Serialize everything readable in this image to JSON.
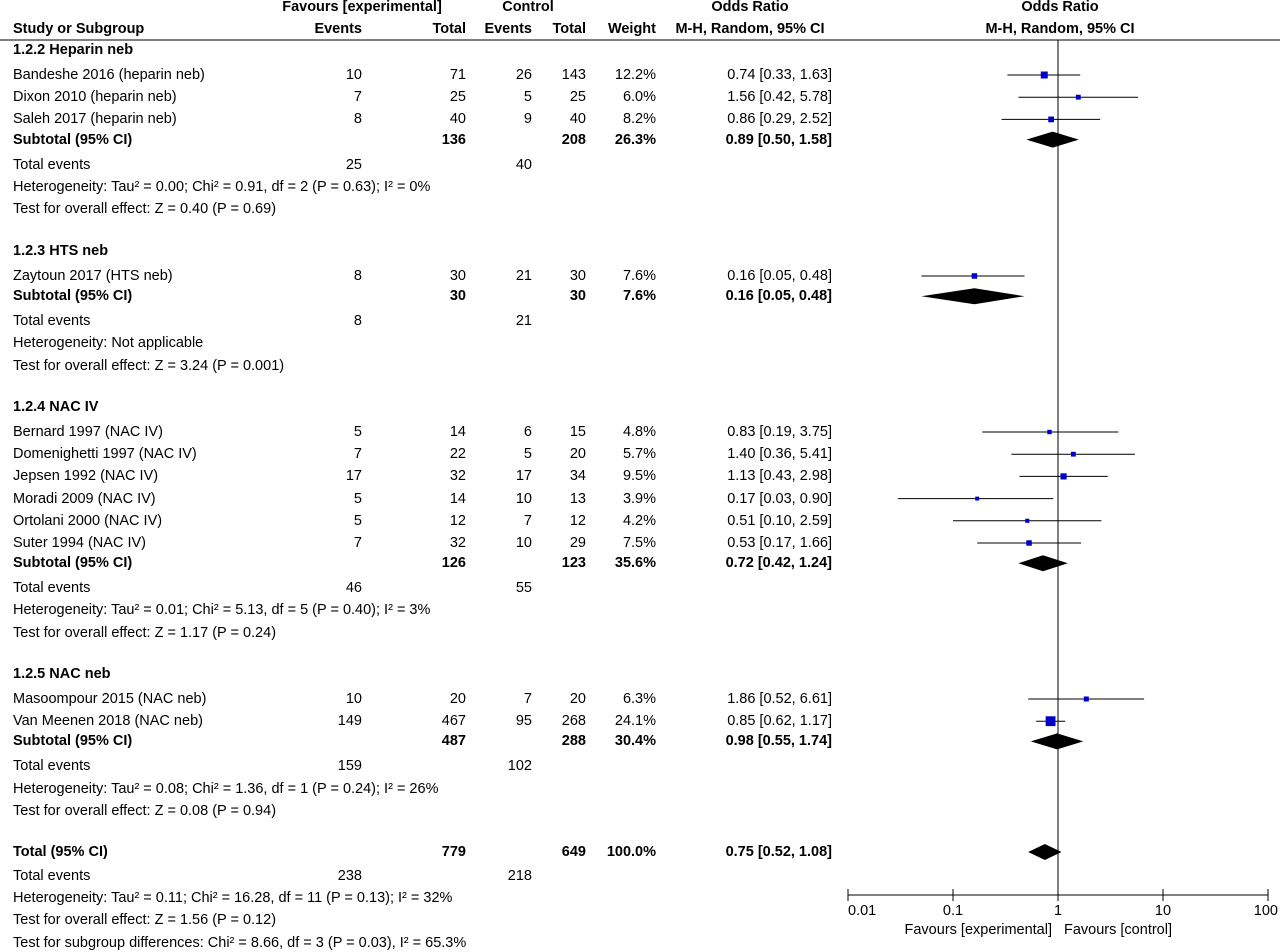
{
  "header": {
    "study_col": "Study or Subgroup",
    "exp_group": "Favours [experimental]",
    "ctrl_group": "Control",
    "events": "Events",
    "total": "Total",
    "weight": "Weight",
    "or_col": "Odds Ratio",
    "or_method": "M-H, Random, 95% CI",
    "or_col2": "Odds Ratio",
    "or_method2": "M-H, Random, 95% CI"
  },
  "chart_data": {
    "type": "forest",
    "measure": "Odds Ratio",
    "method": "M-H, Random, 95% CI",
    "scale": "log",
    "xlim": [
      0.01,
      100
    ],
    "ticks": [
      "0.01",
      "0.1",
      "1",
      "10",
      "100"
    ],
    "tick_values": [
      0.01,
      0.1,
      1,
      10,
      100
    ],
    "reference_line": 1,
    "x_left_label": "Favours [experimental]",
    "x_right_label": "Favours [control]",
    "subgroups": [
      {
        "title": "1.2.2 Heparin neb",
        "studies": [
          {
            "name": "Bandeshe 2016 (heparin neb)",
            "e_events": "10",
            "e_total": "71",
            "c_events": "26",
            "c_total": "143",
            "weight": "12.2%",
            "or_text": "0.74 [0.33, 1.63]",
            "or": 0.74,
            "lo": 0.33,
            "hi": 1.63
          },
          {
            "name": "Dixon 2010 (heparin neb)",
            "e_events": "7",
            "e_total": "25",
            "c_events": "5",
            "c_total": "25",
            "weight": "6.0%",
            "or_text": "1.56 [0.42, 5.78]",
            "or": 1.56,
            "lo": 0.42,
            "hi": 5.78
          },
          {
            "name": "Saleh 2017 (heparin neb)",
            "e_events": "8",
            "e_total": "40",
            "c_events": "9",
            "c_total": "40",
            "weight": "8.2%",
            "or_text": "0.86 [0.29, 2.52]",
            "or": 0.86,
            "lo": 0.29,
            "hi": 2.52
          }
        ],
        "subtotal": {
          "label": "Subtotal (95% CI)",
          "e_total": "136",
          "c_total": "208",
          "weight": "26.3%",
          "or_text": "0.89 [0.50, 1.58]",
          "or": 0.89,
          "lo": 0.5,
          "hi": 1.58
        },
        "total_events": {
          "label": "Total events",
          "e": "25",
          "c": "40"
        },
        "heterogeneity": "Heterogeneity: Tau² = 0.00; Chi² = 0.91, df = 2 (P = 0.63); I² = 0%",
        "overall": "Test for overall effect: Z = 0.40 (P = 0.69)"
      },
      {
        "title": "1.2.3 HTS neb",
        "studies": [
          {
            "name": "Zaytoun 2017 (HTS neb)",
            "e_events": "8",
            "e_total": "30",
            "c_events": "21",
            "c_total": "30",
            "weight": "7.6%",
            "or_text": "0.16 [0.05, 0.48]",
            "or": 0.16,
            "lo": 0.05,
            "hi": 0.48
          }
        ],
        "subtotal": {
          "label": "Subtotal (95% CI)",
          "e_total": "30",
          "c_total": "30",
          "weight": "7.6%",
          "or_text": "0.16 [0.05, 0.48]",
          "or": 0.16,
          "lo": 0.05,
          "hi": 0.48
        },
        "total_events": {
          "label": "Total events",
          "e": "8",
          "c": "21"
        },
        "heterogeneity": "Heterogeneity: Not applicable",
        "overall": "Test for overall effect: Z = 3.24 (P = 0.001)"
      },
      {
        "title": "1.2.4 NAC IV",
        "studies": [
          {
            "name": "Bernard 1997 (NAC IV)",
            "e_events": "5",
            "e_total": "14",
            "c_events": "6",
            "c_total": "15",
            "weight": "4.8%",
            "or_text": "0.83 [0.19, 3.75]",
            "or": 0.83,
            "lo": 0.19,
            "hi": 3.75
          },
          {
            "name": "Domenighetti 1997 (NAC IV)",
            "e_events": "7",
            "e_total": "22",
            "c_events": "5",
            "c_total": "20",
            "weight": "5.7%",
            "or_text": "1.40 [0.36, 5.41]",
            "or": 1.4,
            "lo": 0.36,
            "hi": 5.41
          },
          {
            "name": "Jepsen 1992 (NAC IV)",
            "e_events": "17",
            "e_total": "32",
            "c_events": "17",
            "c_total": "34",
            "weight": "9.5%",
            "or_text": "1.13 [0.43, 2.98]",
            "or": 1.13,
            "lo": 0.43,
            "hi": 2.98
          },
          {
            "name": "Moradi 2009 (NAC IV)",
            "e_events": "5",
            "e_total": "14",
            "c_events": "10",
            "c_total": "13",
            "weight": "3.9%",
            "or_text": "0.17 [0.03, 0.90]",
            "or": 0.17,
            "lo": 0.03,
            "hi": 0.9
          },
          {
            "name": "Ortolani 2000 (NAC IV)",
            "e_events": "5",
            "e_total": "12",
            "c_events": "7",
            "c_total": "12",
            "weight": "4.2%",
            "or_text": "0.51 [0.10, 2.59]",
            "or": 0.51,
            "lo": 0.1,
            "hi": 2.59
          },
          {
            "name": "Suter 1994 (NAC IV)",
            "e_events": "7",
            "e_total": "32",
            "c_events": "10",
            "c_total": "29",
            "weight": "7.5%",
            "or_text": "0.53 [0.17, 1.66]",
            "or": 0.53,
            "lo": 0.17,
            "hi": 1.66
          }
        ],
        "subtotal": {
          "label": "Subtotal (95% CI)",
          "e_total": "126",
          "c_total": "123",
          "weight": "35.6%",
          "or_text": "0.72 [0.42, 1.24]",
          "or": 0.72,
          "lo": 0.42,
          "hi": 1.24
        },
        "total_events": {
          "label": "Total events",
          "e": "46",
          "c": "55"
        },
        "heterogeneity": "Heterogeneity: Tau² = 0.01; Chi² = 5.13, df = 5 (P = 0.40); I² = 3%",
        "overall": "Test for overall effect: Z = 1.17 (P = 0.24)"
      },
      {
        "title": "1.2.5 NAC neb",
        "studies": [
          {
            "name": "Masoompour 2015 (NAC neb)",
            "e_events": "10",
            "e_total": "20",
            "c_events": "7",
            "c_total": "20",
            "weight": "6.3%",
            "or_text": "1.86 [0.52, 6.61]",
            "or": 1.86,
            "lo": 0.52,
            "hi": 6.61
          },
          {
            "name": "Van Meenen 2018 (NAC neb)",
            "e_events": "149",
            "e_total": "467",
            "c_events": "95",
            "c_total": "268",
            "weight": "24.1%",
            "or_text": "0.85 [0.62, 1.17]",
            "or": 0.85,
            "lo": 0.62,
            "hi": 1.17
          }
        ],
        "subtotal": {
          "label": "Subtotal (95% CI)",
          "e_total": "487",
          "c_total": "288",
          "weight": "30.4%",
          "or_text": "0.98 [0.55, 1.74]",
          "or": 0.98,
          "lo": 0.55,
          "hi": 1.74
        },
        "total_events": {
          "label": "Total events",
          "e": "159",
          "c": "102"
        },
        "heterogeneity": "Heterogeneity: Tau² = 0.08; Chi² = 1.36, df = 1 (P = 0.24); I² = 26%",
        "overall": "Test for overall effect: Z = 0.08 (P = 0.94)"
      }
    ],
    "total": {
      "label": "Total (95% CI)",
      "e_total": "779",
      "c_total": "649",
      "weight": "100.0%",
      "or_text": "0.75 [0.52, 1.08]",
      "or": 0.75,
      "lo": 0.52,
      "hi": 1.08
    },
    "total_events": {
      "label": "Total events",
      "e": "238",
      "c": "218"
    },
    "heterogeneity": "Heterogeneity: Tau² = 0.11; Chi² = 16.28, df = 11 (P = 0.13); I² = 32%",
    "overall": "Test for overall effect: Z = 1.56 (P = 0.12)",
    "subgroup_diff": "Test for subgroup differences: Chi² = 8.66, df = 3 (P = 0.03), I² = 65.3%",
    "colors": {
      "marker": "#0000cc",
      "diamond": "#000000",
      "line": "#000000"
    }
  }
}
